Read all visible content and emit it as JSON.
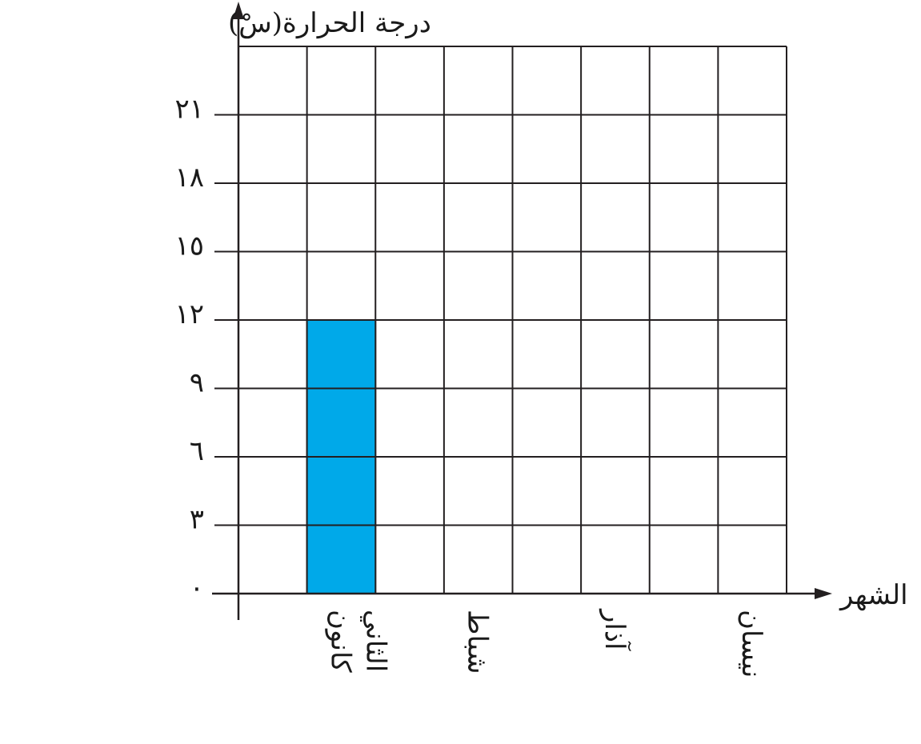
{
  "chart_data": {
    "type": "bar",
    "ylabel": "درجة الحرارة(سْ)",
    "xlabel": "الشهر",
    "ylim": [
      0,
      24
    ],
    "y_ticks": [
      {
        "value": 0,
        "label": "٠"
      },
      {
        "value": 3,
        "label": "٣"
      },
      {
        "value": 6,
        "label": "٦"
      },
      {
        "value": 9,
        "label": "٩"
      },
      {
        "value": 12,
        "label": "١٢"
      },
      {
        "value": 15,
        "label": "١٥"
      },
      {
        "value": 18,
        "label": "١٨"
      },
      {
        "value": 21,
        "label": "٢١"
      }
    ],
    "grid": true,
    "columns": 8,
    "categories": [
      "كانون الثاني",
      "شباط",
      "آذار",
      "نيسان"
    ],
    "values": [
      12,
      null,
      null,
      null
    ],
    "bar_color": "#00A9E9",
    "line_color": "#231F20"
  }
}
